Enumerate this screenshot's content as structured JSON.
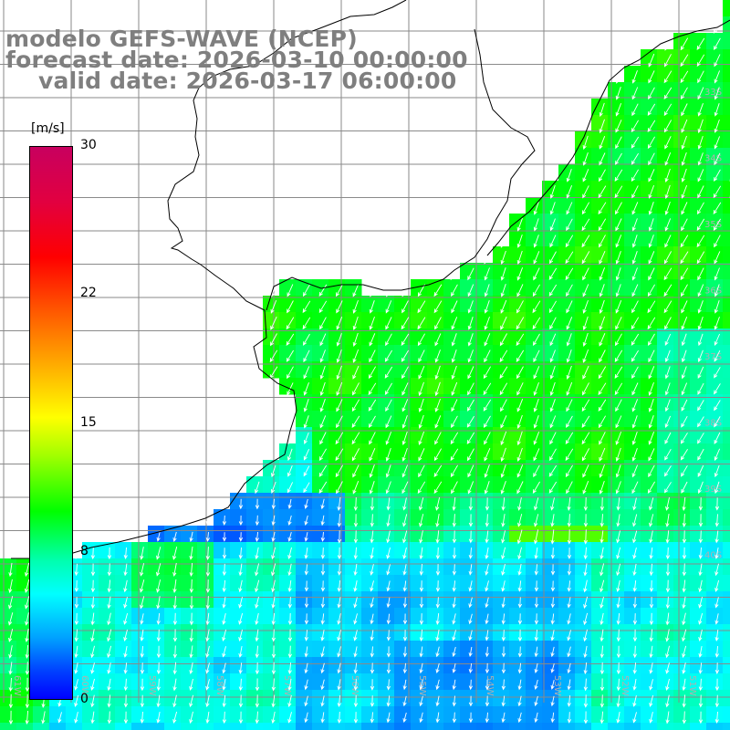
{
  "title": {
    "line1": "modelo GEFS-WAVE (NCEP)",
    "line2": "forecast date: 2026-03-10 00:00:00",
    "line3": "valid date: 2026-03-17 06:00:00"
  },
  "colorbar": {
    "unit": "[m/s]",
    "ticks": [
      {
        "label": "30",
        "value": 30
      },
      {
        "label": "22",
        "value": 22
      },
      {
        "label": "15",
        "value": 15
      },
      {
        "label": "8",
        "value": 8
      },
      {
        "label": "0",
        "value": 0
      }
    ],
    "range": [
      0,
      30
    ]
  },
  "map": {
    "variable": "wind speed and direction",
    "lat_labels": [
      "33S",
      "34S",
      "35S",
      "36S",
      "37S",
      "38S",
      "39S",
      "40S"
    ],
    "lon_labels": [
      "61W",
      "60W",
      "59W",
      "58W",
      "57W",
      "56W",
      "55W",
      "54W",
      "53W",
      "52W",
      "51W"
    ],
    "colors": {
      "ocean_strong": "#22ee22",
      "ocean_medium": "#00ffcc",
      "ocean_weak": "#1aa0ff",
      "land": "#ffffff",
      "grid": "#8a8a8a",
      "coastline": "#000000",
      "arrows": "#ffffff"
    }
  }
}
